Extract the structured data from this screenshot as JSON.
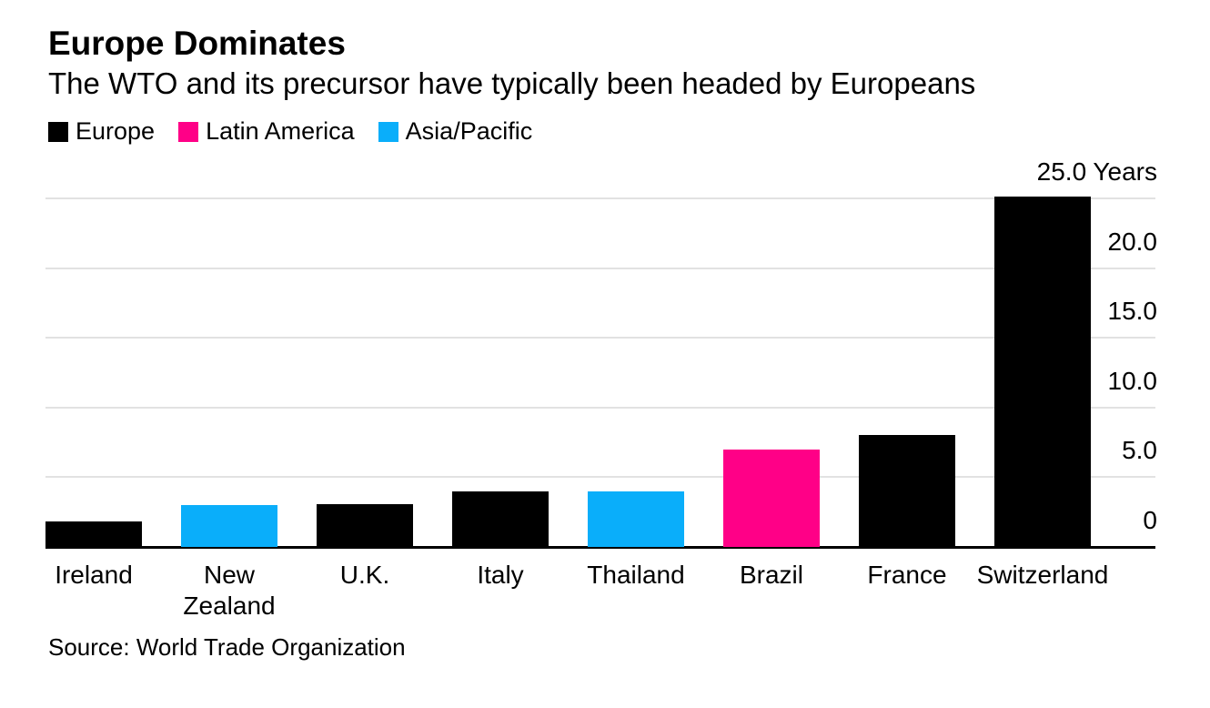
{
  "chart_data": {
    "type": "bar",
    "title": "Europe Dominates",
    "subtitle": "The WTO and its precursor have typically been headed by Europeans",
    "source": "Source: World Trade Organization",
    "unit": "Years",
    "categories": [
      "Ireland",
      "New Zealand",
      "U.K.",
      "Italy",
      "Thailand",
      "Brazil",
      "France",
      "Switzerland"
    ],
    "category_display": [
      "Ireland",
      "New\nZealand",
      "U.K.",
      "Italy",
      "Thailand",
      "Brazil",
      "France",
      "Switzerland"
    ],
    "values": [
      1.8,
      3.0,
      3.1,
      4.0,
      4.0,
      7.0,
      8.0,
      25.1
    ],
    "regions": [
      "Europe",
      "Asia/Pacific",
      "Europe",
      "Europe",
      "Asia/Pacific",
      "Latin America",
      "Europe",
      "Europe"
    ],
    "legend": [
      {
        "label": "Europe",
        "color": "#000000"
      },
      {
        "label": "Latin America",
        "color": "#FF0087"
      },
      {
        "label": "Asia/Pacific",
        "color": "#0AAEFA"
      }
    ],
    "legend_position": "top-left",
    "y_axis": {
      "min": 0,
      "max": 25.3,
      "position": "right",
      "grid": true,
      "gridline_color": "#E2E2E2",
      "baseline_color": "#000000",
      "ticks": [
        {
          "value": 0,
          "label": "0"
        },
        {
          "value": 5,
          "label": "5.0"
        },
        {
          "value": 10,
          "label": "10.0"
        },
        {
          "value": 15,
          "label": "15.0"
        },
        {
          "value": 20,
          "label": "20.0"
        },
        {
          "value": 25,
          "label": "25.0 Years"
        }
      ]
    }
  }
}
